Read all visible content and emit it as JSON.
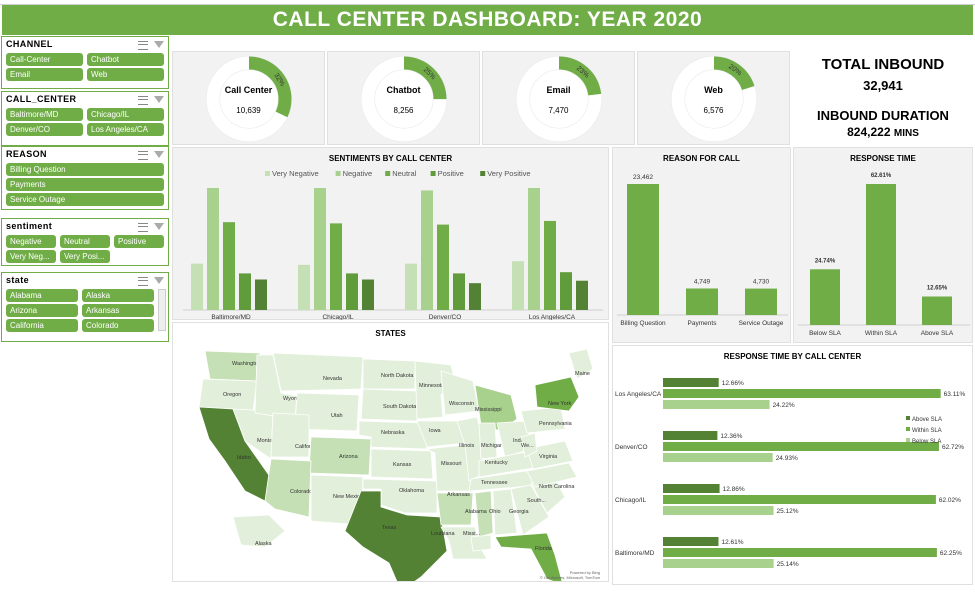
{
  "title": "CALL CENTER DASHBOARD: YEAR 2020",
  "colors": {
    "accent": "#70ad47",
    "dark": "#548235",
    "light": "#a9d18e",
    "lighter": "#c5e0b4"
  },
  "slicers": {
    "channel": {
      "title": "CHANNEL",
      "items": [
        "Call-Center",
        "Chatbot",
        "Email",
        "Web"
      ]
    },
    "call_center": {
      "title": "CALL_CENTER",
      "items": [
        "Baltimore/MD",
        "Chicago/IL",
        "Denver/CO",
        "Los Angeles/CA"
      ]
    },
    "reason": {
      "title": "REASON",
      "items": [
        "Billing Question",
        "Payments",
        "Service Outage"
      ]
    },
    "sentiment": {
      "title": "sentiment",
      "items": [
        "Negative",
        "Neutral",
        "Positive",
        "Very Neg...",
        "Very Posi..."
      ]
    },
    "state": {
      "title": "state",
      "items": [
        "Alabama",
        "Alaska",
        "Arizona",
        "Arkansas",
        "California",
        "Colorado"
      ]
    }
  },
  "donuts": [
    {
      "label": "Call Center",
      "value": "10,639",
      "pct": "32%",
      "fraction": 0.32
    },
    {
      "label": "Chatbot",
      "value": "8,256",
      "pct": "25%",
      "fraction": 0.25
    },
    {
      "label": "Email",
      "value": "7,470",
      "pct": "23%",
      "fraction": 0.23
    },
    {
      "label": "Web",
      "value": "6,576",
      "pct": "20%",
      "fraction": 0.2
    }
  ],
  "kpi": {
    "total_inbound_label": "TOTAL INBOUND",
    "total_inbound_value": "32,941",
    "duration_label": "INBOUND DURATION",
    "duration_value": "824,222",
    "duration_unit": "MINS"
  },
  "map": {
    "title": "STATES",
    "states": [
      "Washington",
      "Oregon",
      "Idaho",
      "Montana",
      "Wyoming",
      "Nevada",
      "Utah",
      "California",
      "Arizona",
      "Colorado",
      "New Mexico",
      "North Dakota",
      "South Dakota",
      "Nebraska",
      "Kansas",
      "Oklahoma",
      "Texas",
      "Minnesota",
      "Iowa",
      "Missouri",
      "Arkansas",
      "Louisiana",
      "Wisconsin",
      "Illinois",
      "Mississippi",
      "Michigan",
      "Indiana",
      "Kentucky",
      "Tennessee",
      "Alabama",
      "Ohio",
      "Georgia",
      "Florida",
      "South...",
      "North Carolina",
      "Virginia",
      "We...",
      "Pennsylvania",
      "New York",
      "Maine",
      "Alaska",
      "Missi..."
    ],
    "attribution_1": "Powered by Bing",
    "attribution_2": "© GeoNames, Microsoft, TomTom"
  },
  "chart_data": [
    {
      "type": "bar",
      "title": "SENTIMENTS BY CALL CENTER",
      "categories": [
        "Baltimore/MD",
        "Chicago/IL",
        "Denver/CO",
        "Los Angeles/CA"
      ],
      "series": [
        {
          "name": "Very Negative",
          "values": [
            38,
            37,
            38,
            40
          ]
        },
        {
          "name": "Negative",
          "values": [
            100,
            100,
            98,
            100
          ]
        },
        {
          "name": "Neutral",
          "values": [
            72,
            71,
            70,
            73
          ]
        },
        {
          "name": "Positive",
          "values": [
            30,
            30,
            30,
            31
          ]
        },
        {
          "name": "Very Positive",
          "values": [
            25,
            25,
            22,
            24
          ]
        }
      ],
      "legend": "top"
    },
    {
      "type": "bar",
      "title": "REASON FOR CALL",
      "categories": [
        "Billing Question",
        "Payments",
        "Service Outage"
      ],
      "values": [
        23462,
        4749,
        4730
      ],
      "data_labels": [
        "23,462",
        "4,749",
        "4,730"
      ]
    },
    {
      "type": "bar",
      "title": "RESPONSE TIME",
      "categories": [
        "Below SLA",
        "Within SLA",
        "Above SLA"
      ],
      "values": [
        24.74,
        62.61,
        12.65
      ],
      "data_labels": [
        "24.74%",
        "62.61%",
        "12.65%"
      ]
    },
    {
      "type": "bar",
      "orientation": "horizontal",
      "title": "RESPONSE TIME BY CALL CENTER",
      "categories": [
        "Los Angeles/CA",
        "Denver/CO",
        "Chicago/IL",
        "Baltimore/MD"
      ],
      "series": [
        {
          "name": "Above SLA",
          "values": [
            12.66,
            12.36,
            12.86,
            12.61
          ],
          "labels": [
            "12.66%",
            "12.36%",
            "12.86%",
            "12.61%"
          ]
        },
        {
          "name": "Within SLA",
          "values": [
            63.11,
            62.72,
            62.02,
            62.25
          ],
          "labels": [
            "63.11%",
            "62.72%",
            "62.02%",
            "62.25%"
          ]
        },
        {
          "name": "Below SLA",
          "values": [
            24.22,
            24.93,
            25.12,
            25.14
          ],
          "labels": [
            "24.22%",
            "24.93%",
            "25.12%",
            "25.14%"
          ]
        }
      ],
      "legend": "right"
    }
  ]
}
